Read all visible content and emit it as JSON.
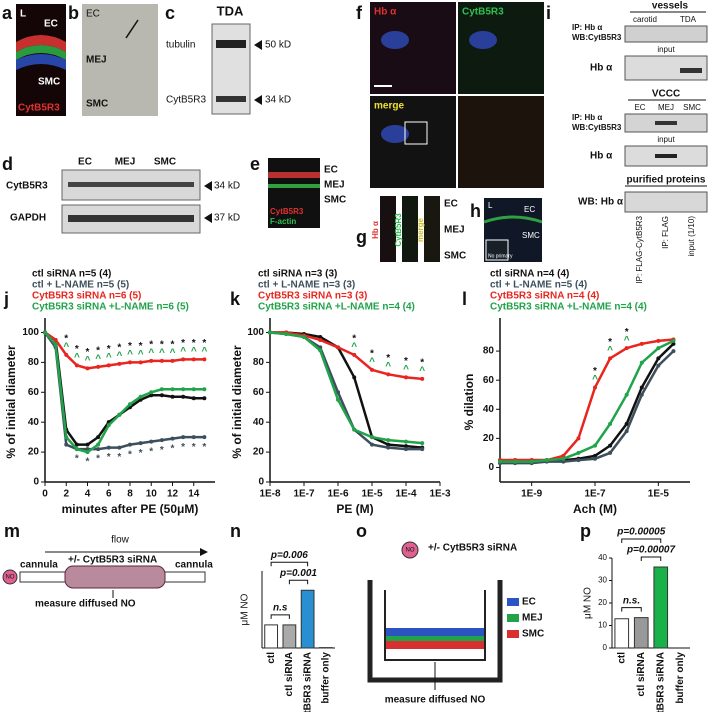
{
  "panels": {
    "a": {
      "letter": "a",
      "labels": [
        "L",
        "EC",
        "SMC",
        "CytB5R3"
      ]
    },
    "b": {
      "letter": "b",
      "labels": [
        "EC",
        "MEJ",
        "SMC"
      ]
    },
    "c": {
      "letter": "c",
      "labels": [
        "TDA",
        "tubulin",
        "50 kD",
        "CytB5R3",
        "34 kD"
      ]
    },
    "d": {
      "letter": "d",
      "labels": [
        "EC",
        "MEJ",
        "SMC",
        "CytB5R3",
        "34 kD",
        "GAPDH",
        "37 kD"
      ]
    },
    "e": {
      "letter": "e",
      "labels": [
        "EC",
        "MEJ",
        "SMC",
        "CytB5R3",
        "F-actin"
      ]
    },
    "f": {
      "letter": "f",
      "labels": [
        "Hb α",
        "CytB5R3",
        "merge"
      ]
    },
    "g": {
      "letter": "g",
      "labels": [
        "Hb α",
        "CytB5R3",
        "merge",
        "EC",
        "MEJ",
        "SMC"
      ]
    },
    "h": {
      "letter": "h",
      "labels": [
        "L",
        "EC",
        "SMC",
        "No primary"
      ]
    },
    "i": {
      "letter": "i",
      "labels": [
        "vessels",
        "carotid",
        "TDA",
        "IP: Hb α",
        "WB:CytB5R3",
        "input",
        "Hb α",
        "VCCC",
        "EC",
        "MEJ",
        "SMC",
        "IP: Hb α",
        "WB:CytB5R3",
        "input",
        "Hb α",
        "purified proteins",
        "WB: Hb α",
        "IP: FLAG-CytB5R3",
        "IP: FLAG",
        "input (1/10)"
      ]
    },
    "m": {
      "letter": "m",
      "labels": [
        "flow",
        "cannula",
        "+/-  CytB5R3 siRNA",
        "cannula",
        "measure diffused NO",
        "NO"
      ]
    },
    "o": {
      "letter": "o",
      "labels": [
        "NO",
        "+/- CytB5R3 siRNA",
        "EC",
        "MEJ",
        "SMC",
        "measure diffused NO"
      ]
    }
  },
  "chart_data": [
    {
      "type": "line",
      "panel_label": "j",
      "x": [
        0,
        1,
        2,
        3,
        4,
        5,
        6,
        7,
        8,
        9,
        10,
        11,
        12,
        13,
        14,
        15
      ],
      "xlim": [
        0,
        16
      ],
      "xticks": [
        0,
        2,
        4,
        6,
        8,
        10,
        12,
        14
      ],
      "ylim": [
        0,
        107
      ],
      "yticks": [
        0,
        20,
        40,
        60,
        80,
        100
      ],
      "xlabel": "minutes after PE (50μM)",
      "ylabel": "% of initial diameter",
      "series": [
        {
          "name": "ctl siRNA n=5 (4)",
          "color": "#111111",
          "values": [
            100,
            95,
            35,
            25,
            25,
            30,
            40,
            45,
            50,
            55,
            58,
            58,
            57,
            57,
            56,
            56
          ]
        },
        {
          "name": "ctl + L-NAME n=5 (5)",
          "color": "#3d4f5c",
          "values": [
            100,
            90,
            25,
            22,
            22,
            22,
            23,
            23,
            25,
            26,
            27,
            28,
            29,
            30,
            30,
            30
          ]
        },
        {
          "name": "CytB5R3 siRNA n=6 (5)",
          "color": "#e8251f",
          "values": [
            100,
            95,
            85,
            78,
            76,
            77,
            78,
            79,
            80,
            80,
            81,
            81,
            81,
            82,
            82,
            82
          ]
        },
        {
          "name": "CytB5R3 siRNA +L-NAME n=6 (5)",
          "color": "#21a34a",
          "values": [
            100,
            92,
            30,
            22,
            20,
            25,
            38,
            45,
            52,
            57,
            60,
            62,
            62,
            62,
            62,
            62
          ]
        }
      ],
      "markers": [
        {
          "label": "*",
          "color": "#111111",
          "position": "above",
          "x": [
            2,
            3,
            4,
            5,
            6,
            7,
            8,
            9,
            10,
            11,
            12,
            13,
            14,
            15
          ]
        },
        {
          "label": "^",
          "color": "#21a34a",
          "position": "above",
          "x": [
            2,
            3,
            4,
            5,
            6,
            7,
            8,
            9,
            10,
            11,
            12,
            13,
            14,
            15
          ]
        },
        {
          "label": "*",
          "color": "#3d4f5c",
          "position": "below",
          "x": [
            3,
            4,
            5,
            6,
            7,
            8,
            9,
            10,
            11,
            12,
            13,
            14,
            15
          ]
        }
      ]
    },
    {
      "type": "line",
      "panel_label": "k",
      "log_x": true,
      "x": [
        1e-08,
        3e-08,
        1e-07,
        3e-07,
        1e-06,
        3e-06,
        1e-05,
        3e-05,
        0.0001,
        0.0003
      ],
      "xlim": [
        1e-08,
        0.001
      ],
      "xticks": [
        {
          "value": 1e-08,
          "label": "1E-8"
        },
        {
          "value": 1e-07,
          "label": "1E-7"
        },
        {
          "value": 1e-06,
          "label": "1E-6"
        },
        {
          "value": 1e-05,
          "label": "1E-5"
        },
        {
          "value": 0.0001,
          "label": "1E-4"
        },
        {
          "value": 0.001,
          "label": "1E-3"
        }
      ],
      "ylim": [
        0,
        107
      ],
      "yticks": [
        0,
        20,
        40,
        60,
        80,
        100
      ],
      "xlabel": "PE (M)",
      "ylabel": "% of initial diameter",
      "series": [
        {
          "name": "ctl siRNA n=3 (3)",
          "color": "#111111",
          "values": [
            100,
            100,
            99,
            97,
            90,
            70,
            30,
            25,
            24,
            23
          ]
        },
        {
          "name": "ctl + L-NAME n=3 (3)",
          "color": "#3d4f5c",
          "values": [
            100,
            99,
            97,
            90,
            60,
            35,
            25,
            23,
            22,
            22
          ]
        },
        {
          "name": "CytB5R3 siRNA n=3 (3)",
          "color": "#e8251f",
          "values": [
            100,
            100,
            98,
            95,
            90,
            85,
            75,
            72,
            70,
            69
          ]
        },
        {
          "name": "CytB5R3 siRNA +L-NAME n=4 (4)",
          "color": "#21a34a",
          "values": [
            100,
            99,
            97,
            88,
            55,
            35,
            30,
            28,
            27,
            26
          ]
        }
      ],
      "markers": [
        {
          "label": "*",
          "color": "#111111",
          "position": "above",
          "x": [
            3e-06,
            1e-05,
            3e-05,
            0.0001,
            0.0003
          ]
        },
        {
          "label": "^",
          "color": "#21a34a",
          "position": "above",
          "x": [
            3e-06,
            1e-05,
            3e-05,
            0.0001,
            0.0003
          ]
        }
      ]
    },
    {
      "type": "line",
      "panel_label": "l",
      "log_x": true,
      "x": [
        1e-10,
        3e-10,
        1e-09,
        3e-09,
        1e-08,
        3e-08,
        1e-07,
        3e-07,
        1e-06,
        3e-06,
        1e-05,
        3e-05
      ],
      "xlim": [
        1e-10,
        0.0001
      ],
      "xticks": [
        {
          "value": 1e-09,
          "label": "1E-9"
        },
        {
          "value": 1e-07,
          "label": "1E-7"
        },
        {
          "value": 1e-05,
          "label": "1E-5"
        }
      ],
      "ylim": [
        -10,
        100
      ],
      "yticks": [
        0,
        20,
        40,
        60,
        80
      ],
      "xlabel": "Ach (M)",
      "ylabel": "% dilation",
      "series": [
        {
          "name": "ctl siRNA n=4 (4)",
          "color": "#111111",
          "values": [
            5,
            5,
            5,
            5,
            5,
            6,
            8,
            15,
            30,
            55,
            75,
            85
          ]
        },
        {
          "name": "ctl + L-NAME n=5 (4)",
          "color": "#3d4f5c",
          "values": [
            3,
            3,
            3,
            4,
            4,
            5,
            6,
            10,
            25,
            50,
            70,
            80
          ]
        },
        {
          "name": "CytB5R3 siRNA n=4 (4)",
          "color": "#e8251f",
          "values": [
            5,
            5,
            5,
            5,
            8,
            20,
            55,
            75,
            82,
            85,
            87,
            88
          ]
        },
        {
          "name": "CytB5R3 siRNA +L-NAME n=4 (4)",
          "color": "#21a34a",
          "values": [
            4,
            4,
            4,
            5,
            6,
            10,
            15,
            30,
            50,
            72,
            82,
            87
          ]
        }
      ],
      "markers": [
        {
          "label": "*",
          "color": "#111111",
          "position": "above",
          "x": [
            1e-07,
            3e-07,
            1e-06
          ]
        },
        {
          "label": "^",
          "color": "#21a34a",
          "position": "above",
          "x": [
            1e-07,
            3e-07,
            1e-06
          ]
        }
      ]
    },
    {
      "type": "bar",
      "panel_label": "n",
      "ylabel": "μM NO",
      "categories": [
        "ctl",
        "ctl siRNA",
        "CytB5R3 siRNA",
        "buffer only"
      ],
      "values": [
        0.06,
        0.06,
        0.15,
        0.001
      ],
      "colors": [
        "#ffffff",
        "#aaaaaa",
        "#2a8fd0",
        "#ffffff"
      ],
      "ylim": [
        0,
        0.2
      ],
      "brackets": [
        {
          "label": "n.s",
          "from": "ctl",
          "to": "ctl siRNA"
        },
        {
          "label": "p=0.001",
          "from": "ctl siRNA",
          "to": "CytB5R3 siRNA"
        },
        {
          "label": "p=0.006",
          "from": "ctl",
          "to": "CytB5R3 siRNA"
        }
      ]
    },
    {
      "type": "bar",
      "panel_label": "p",
      "ylabel": "μM NO",
      "categories": [
        "ctl",
        "ctl siRNA",
        "CytB5R3 siRNA",
        "buffer only"
      ],
      "values": [
        13,
        13.5,
        36,
        0
      ],
      "colors": [
        "#ffffff",
        "#999999",
        "#1ab04a",
        "#ffffff"
      ],
      "ylim": [
        0,
        40
      ],
      "yticks": [
        0,
        10,
        20,
        30,
        40
      ],
      "brackets": [
        {
          "label": "n.s.",
          "from": "ctl",
          "to": "ctl siRNA"
        },
        {
          "label": "p=0.00007",
          "from": "ctl siRNA",
          "to": "CytB5R3 siRNA"
        },
        {
          "label": "p=0.00005",
          "from": "ctl",
          "to": "CytB5R3 siRNA"
        }
      ]
    }
  ]
}
